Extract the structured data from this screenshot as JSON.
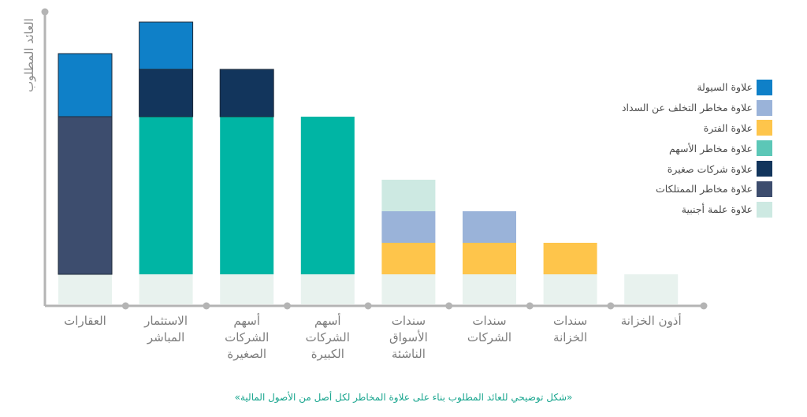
{
  "chart_data": {
    "type": "bar",
    "stacked": true,
    "ylabel": "العائد المطلوب",
    "categories": [
      "العقارات",
      "الاستثمار المباشر",
      "أسهم الشركات الصغيرة",
      "أسهم الشركات الكبيرة",
      "سندات الأسواق الناشئة",
      "سندات الشركات",
      "سندات الخزانة",
      "أذون الخزانة"
    ],
    "category_lines": [
      [
        "العقارات"
      ],
      [
        "الاستثمار",
        "المباشر"
      ],
      [
        "أسهم",
        "الشركات",
        "الصغيرة"
      ],
      [
        "أسهم",
        "الشركات",
        "الكبيرة"
      ],
      [
        "سندات",
        "الأسواق",
        "الناشئة"
      ],
      [
        "سندات",
        "الشركات"
      ],
      [
        "سندات",
        "الخزانة"
      ],
      [
        "أذون الخزانة"
      ]
    ],
    "ylim": [
      0,
      9.2
    ],
    "grid": false,
    "legend_position": "right",
    "series": [
      {
        "name": "علاوة عملة أجنبية",
        "color": "#e8f2ee",
        "values": [
          1,
          1,
          1,
          1,
          1,
          1,
          1,
          1
        ]
      },
      {
        "name": "علاوة الفترة",
        "color": "#fec54b",
        "values": [
          0,
          0,
          0,
          0,
          1,
          1,
          1,
          0
        ]
      },
      {
        "name": "علاوة مخاطر التخلف عن السداد",
        "color": "#9ab3d9",
        "values": [
          0,
          0,
          0,
          0,
          1,
          1,
          0,
          0
        ]
      },
      {
        "name": "علاوة مخاطر الأسهم",
        "color": "#00b5a4",
        "values": [
          0,
          5,
          5,
          5,
          0,
          0,
          0,
          0
        ]
      },
      {
        "name": "علاوة مخاطر الممتلكات",
        "color": "#3d4d6e",
        "values": [
          5,
          0,
          0,
          0,
          0,
          0,
          0,
          0
        ]
      },
      {
        "name": "علاوة شركات صغيرة",
        "color": "#12355c",
        "values": [
          0,
          1.5,
          1.5,
          0,
          0,
          0,
          0,
          0
        ]
      },
      {
        "name": "علاوة السيولة",
        "color": "#0f80c8",
        "values": [
          2,
          1.5,
          0,
          0,
          0,
          0,
          0,
          0
        ]
      }
    ],
    "bar_extra": [
      {
        "name": "علاوة عملة أجنبية",
        "color": "#cde9e2",
        "values": [
          0,
          0,
          0,
          0,
          1,
          0,
          0,
          0
        ]
      }
    ]
  },
  "legend": [
    {
      "label": "علاوة السيولة",
      "color": "#0f80c8"
    },
    {
      "label": "علاوة مخاطر التخلف عن السداد",
      "color": "#9ab3d9"
    },
    {
      "label": "علاوة الفترة",
      "color": "#fec54b"
    },
    {
      "label": "علاوة مخاطر الأسهم",
      "color": "#5cc7b7"
    },
    {
      "label": "علاوة شركات صغيرة",
      "color": "#12355c"
    },
    {
      "label": "علاوة مخاطر الممتلكات",
      "color": "#3d4d6e"
    },
    {
      "label": "علاوة علمة أجنبية",
      "color": "#cde9e2"
    }
  ],
  "caption": "«شكل توضيحي للعائد المطلوب بناء على علاوة المخاطر لكل أصل من الأصول المالية»"
}
